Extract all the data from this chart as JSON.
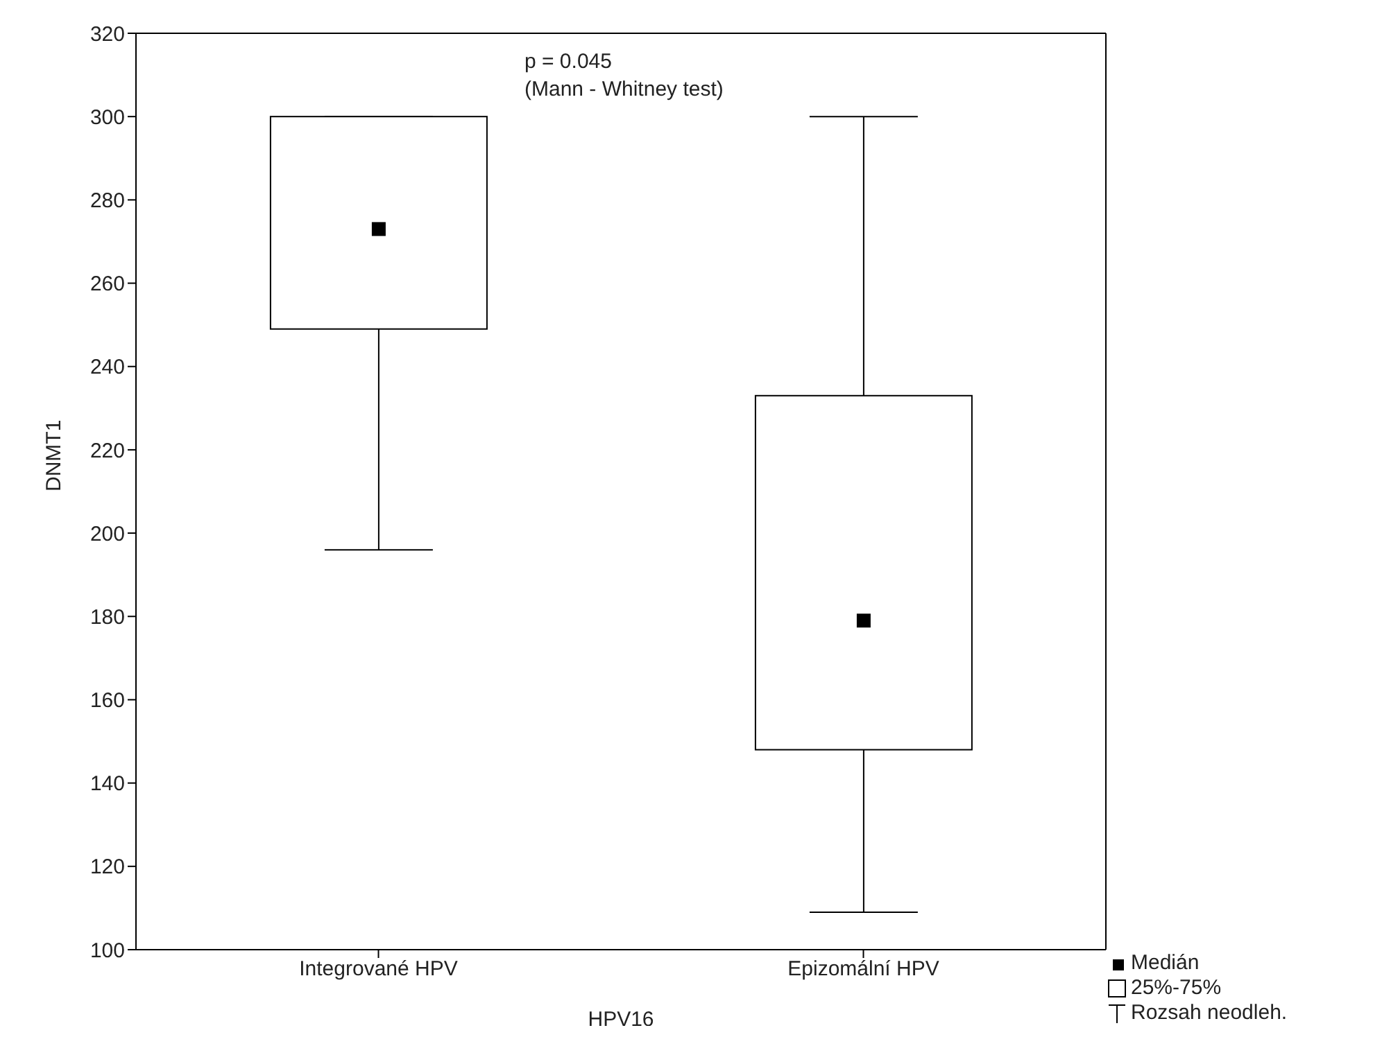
{
  "chart_data": {
    "type": "box",
    "xlabel": "HPV16",
    "ylabel": "DNMT1",
    "categories": [
      "Integrované HPV",
      "Epizomální HPV"
    ],
    "boxes": [
      {
        "low": 196,
        "q1": 249,
        "median": 273,
        "q3": 300,
        "high": 300
      },
      {
        "low": 109,
        "q1": 148,
        "median": 179,
        "q3": 233,
        "high": 300
      }
    ],
    "ylim": [
      100,
      320
    ],
    "yticks": [
      100,
      120,
      140,
      160,
      180,
      200,
      220,
      240,
      260,
      280,
      300,
      320
    ],
    "grid": false,
    "annotations": [
      "p = 0.045",
      "(Mann - Whitney test)",
      "Medián",
      "25%-75%",
      "Rozsah neodleh."
    ]
  }
}
